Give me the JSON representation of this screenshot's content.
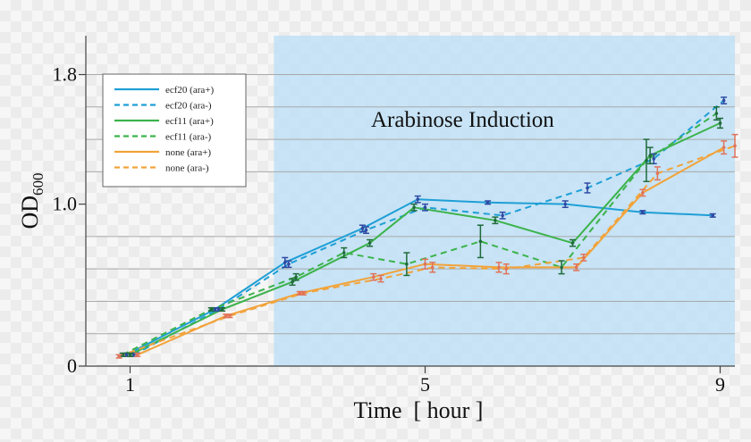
{
  "chart_data": {
    "type": "line",
    "title": "",
    "xlabel": "Time  [ hour ]",
    "ylabel": "OD600",
    "ylabel_main": "OD",
    "ylabel_sub": "600",
    "xlim": [
      0.4,
      9.2
    ],
    "ylim": [
      0,
      2.04
    ],
    "x_ticks": [
      1,
      5,
      9
    ],
    "x_tick_labels": [
      "1",
      "5",
      "9"
    ],
    "y_ticks": [
      0,
      1.0,
      1.8
    ],
    "y_tick_labels": [
      "0",
      "1.0",
      "1.8"
    ],
    "y_gridlines": [
      0.2,
      0.4,
      0.6,
      0.8,
      1.2,
      1.4,
      1.6,
      1.8
    ],
    "grid": true,
    "legend_position": "top-left",
    "annotation": {
      "text": "Arabinose Induction",
      "region_x": [
        2.95,
        9.2
      ],
      "color": "#bfe1f6"
    },
    "series": [
      {
        "name": "ecf20 (ara+)",
        "color": "#1f9fd6",
        "dash": false,
        "x": [
          0.95,
          2.15,
          3.1,
          4.15,
          4.9,
          5.85,
          6.9,
          7.95,
          8.9
        ],
        "y": [
          0.07,
          0.35,
          0.64,
          0.85,
          1.03,
          1.01,
          1.0,
          0.95,
          0.93
        ],
        "err": [
          0.01,
          0.01,
          0.03,
          0.02,
          0.02,
          0.01,
          0.02,
          0.01,
          0.01
        ]
      },
      {
        "name": "ecf20 (ara-)",
        "color": "#1f9fd6",
        "dash": true,
        "x": [
          1.05,
          2.2,
          3.15,
          4.2,
          5.0,
          6.05,
          7.2,
          8.1,
          9.05
        ],
        "y": [
          0.07,
          0.35,
          0.63,
          0.84,
          0.98,
          0.93,
          1.1,
          1.28,
          1.64
        ],
        "err": [
          0.01,
          0.01,
          0.02,
          0.02,
          0.02,
          0.02,
          0.03,
          0.03,
          0.02
        ]
      },
      {
        "name": "ecf11 (ara+)",
        "color": "#3cb34b",
        "dash": false,
        "x": [
          1.0,
          2.25,
          3.2,
          4.25,
          4.85,
          5.95,
          7.0,
          8.05,
          9.0
        ],
        "y": [
          0.07,
          0.35,
          0.52,
          0.76,
          0.98,
          0.9,
          0.76,
          1.3,
          1.5
        ],
        "err": [
          0.01,
          0.01,
          0.02,
          0.02,
          0.02,
          0.02,
          0.02,
          0.05,
          0.03
        ]
      },
      {
        "name": "ecf11 (ara-)",
        "color": "#3cb34b",
        "dash": true,
        "x": [
          0.9,
          2.1,
          3.25,
          3.9,
          4.75,
          5.75,
          6.85,
          8.0,
          8.95
        ],
        "y": [
          0.07,
          0.35,
          0.55,
          0.7,
          0.63,
          0.77,
          0.61,
          1.27,
          1.56
        ],
        "err": [
          0.01,
          0.01,
          0.02,
          0.03,
          0.07,
          0.1,
          0.04,
          0.13,
          0.04
        ]
      },
      {
        "name": "none (ara+)",
        "color": "#f2a33a",
        "dash": false,
        "x": [
          1.1,
          2.3,
          3.3,
          4.3,
          5.0,
          6.0,
          7.05,
          7.95,
          9.05
        ],
        "y": [
          0.07,
          0.31,
          0.45,
          0.55,
          0.63,
          0.61,
          0.61,
          1.07,
          1.35
        ],
        "err": [
          0.01,
          0.01,
          0.01,
          0.02,
          0.03,
          0.03,
          0.02,
          0.02,
          0.04
        ]
      },
      {
        "name": "none (ara-)",
        "color": "#f2a33a",
        "dash": true,
        "x": [
          0.85,
          2.35,
          3.35,
          4.4,
          5.1,
          6.1,
          7.15,
          8.15,
          9.2
        ],
        "y": [
          0.06,
          0.31,
          0.45,
          0.54,
          0.61,
          0.6,
          0.67,
          1.19,
          1.36
        ],
        "err": [
          0.01,
          0.01,
          0.01,
          0.02,
          0.03,
          0.03,
          0.02,
          0.04,
          0.07
        ]
      }
    ]
  },
  "errorbar_colors": {
    "ecf20": "#2e4aa3",
    "ecf11": "#1f6b3a",
    "none": "#e0735a"
  }
}
